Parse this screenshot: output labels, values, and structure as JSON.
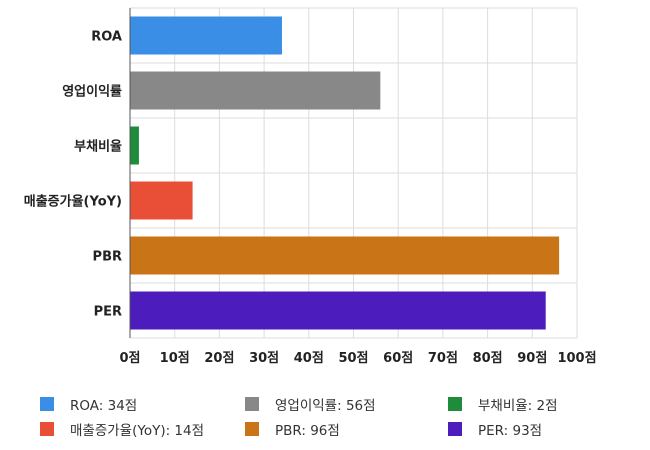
{
  "chart_data": {
    "type": "bar",
    "orientation": "horizontal",
    "categories": [
      "ROA",
      "영업이익률",
      "부채비율",
      "매출증가율(YoY)",
      "PBR",
      "PER"
    ],
    "values": [
      34,
      56,
      2,
      14,
      96,
      93
    ],
    "colors": [
      "#3a8ee6",
      "#888888",
      "#1e8c3a",
      "#e94f37",
      "#c97416",
      "#4c1cbd"
    ],
    "xlim": [
      0,
      100
    ],
    "xticks": [
      0,
      10,
      20,
      30,
      40,
      50,
      60,
      70,
      80,
      90,
      100
    ],
    "tick_suffix": "점",
    "grid": true,
    "legend_position": "bottom"
  },
  "legend": [
    {
      "label": "ROA: 34점",
      "color": "#3a8ee6"
    },
    {
      "label": "영업이익률: 56점",
      "color": "#888888"
    },
    {
      "label": "부채비율: 2점",
      "color": "#1e8c3a"
    },
    {
      "label": "매출증가율(YoY): 14점",
      "color": "#e94f37"
    },
    {
      "label": "PBR: 96점",
      "color": "#c97416"
    },
    {
      "label": "PER: 93점",
      "color": "#4c1cbd"
    }
  ]
}
